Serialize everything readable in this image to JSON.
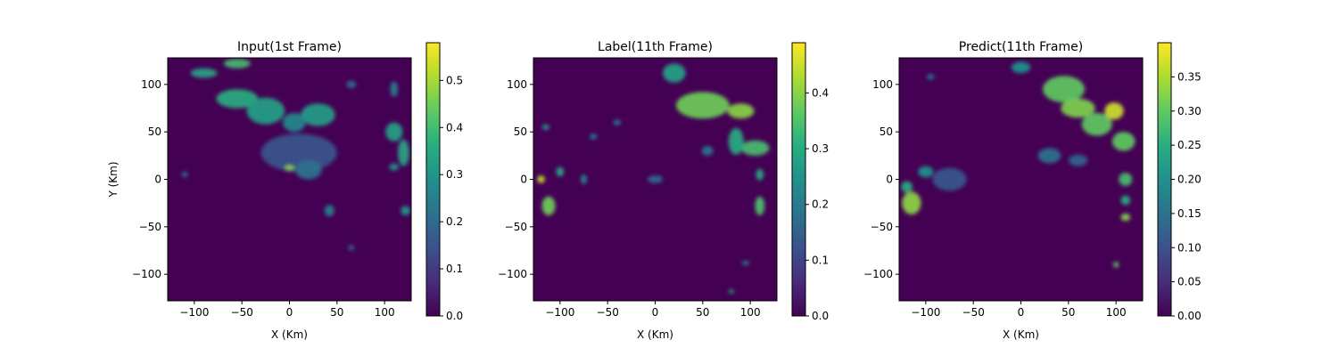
{
  "chart_data": [
    {
      "type": "heatmap",
      "title": "Input(1st Frame)",
      "xlabel": "X (Km)",
      "ylabel": "Y (Km)",
      "xlim": [
        -128,
        128
      ],
      "ylim": [
        -128,
        128
      ],
      "xticks": [
        -100,
        -50,
        0,
        50,
        100
      ],
      "yticks": [
        100,
        50,
        0,
        -50,
        -100
      ],
      "xtick_labels": [
        "−100",
        "−50",
        "0",
        "50",
        "100"
      ],
      "ytick_labels": [
        "100",
        "50",
        "0",
        "−50",
        "−100"
      ],
      "colormap": "viridis",
      "colorbar": {
        "min": 0.0,
        "max": 0.58,
        "ticks": [
          0.0,
          0.1,
          0.2,
          0.3,
          0.4,
          0.5
        ],
        "tick_labels": [
          "0.0",
          "0.1",
          "0.2",
          "0.3",
          "0.4",
          "0.5"
        ]
      },
      "blobs": [
        {
          "x": -55,
          "y": 85,
          "rx": 22,
          "ry": 10,
          "v": 0.36
        },
        {
          "x": -25,
          "y": 72,
          "rx": 20,
          "ry": 14,
          "v": 0.33
        },
        {
          "x": 30,
          "y": 68,
          "rx": 18,
          "ry": 12,
          "v": 0.32
        },
        {
          "x": 5,
          "y": 60,
          "rx": 12,
          "ry": 10,
          "v": 0.27
        },
        {
          "x": -90,
          "y": 112,
          "rx": 14,
          "ry": 5,
          "v": 0.34
        },
        {
          "x": -55,
          "y": 122,
          "rx": 14,
          "ry": 5,
          "v": 0.4
        },
        {
          "x": 10,
          "y": 28,
          "rx": 40,
          "ry": 20,
          "v": 0.15
        },
        {
          "x": 20,
          "y": 10,
          "rx": 14,
          "ry": 10,
          "v": 0.22
        },
        {
          "x": 0,
          "y": 12,
          "rx": 5,
          "ry": 3,
          "v": 0.47
        },
        {
          "x": 110,
          "y": 50,
          "rx": 9,
          "ry": 10,
          "v": 0.33
        },
        {
          "x": 120,
          "y": 28,
          "rx": 6,
          "ry": 14,
          "v": 0.34
        },
        {
          "x": 122,
          "y": -33,
          "rx": 5,
          "ry": 5,
          "v": 0.3
        },
        {
          "x": 110,
          "y": 13,
          "rx": 5,
          "ry": 4,
          "v": 0.28
        },
        {
          "x": 42,
          "y": -33,
          "rx": 5,
          "ry": 6,
          "v": 0.25
        },
        {
          "x": 65,
          "y": 100,
          "rx": 5,
          "ry": 4,
          "v": 0.2
        },
        {
          "x": 110,
          "y": 95,
          "rx": 4,
          "ry": 8,
          "v": 0.25
        },
        {
          "x": -110,
          "y": 5,
          "rx": 3,
          "ry": 3,
          "v": 0.22
        },
        {
          "x": 65,
          "y": -72,
          "rx": 3,
          "ry": 3,
          "v": 0.2
        }
      ]
    },
    {
      "type": "heatmap",
      "title": "Label(11th Frame)",
      "xlabel": "X (Km)",
      "ylabel": "",
      "xlim": [
        -128,
        128
      ],
      "ylim": [
        -128,
        128
      ],
      "xticks": [
        -100,
        -50,
        0,
        50,
        100
      ],
      "yticks": [
        100,
        50,
        0,
        -50,
        -100
      ],
      "xtick_labels": [
        "−100",
        "−50",
        "0",
        "50",
        "100"
      ],
      "ytick_labels": [
        "100",
        "50",
        "0",
        "−50",
        "−100"
      ],
      "colormap": "viridis",
      "colorbar": {
        "min": 0.0,
        "max": 0.49,
        "ticks": [
          0.0,
          0.1,
          0.2,
          0.3,
          0.4
        ],
        "tick_labels": [
          "0.0",
          "0.1",
          "0.2",
          "0.3",
          "0.4"
        ]
      },
      "blobs": [
        {
          "x": 50,
          "y": 78,
          "rx": 28,
          "ry": 14,
          "v": 0.38
        },
        {
          "x": 90,
          "y": 72,
          "rx": 14,
          "ry": 8,
          "v": 0.4
        },
        {
          "x": 20,
          "y": 112,
          "rx": 12,
          "ry": 10,
          "v": 0.28
        },
        {
          "x": 105,
          "y": 33,
          "rx": 15,
          "ry": 8,
          "v": 0.34
        },
        {
          "x": 85,
          "y": 40,
          "rx": 8,
          "ry": 14,
          "v": 0.3
        },
        {
          "x": -112,
          "y": -28,
          "rx": 7,
          "ry": 10,
          "v": 0.38
        },
        {
          "x": -120,
          "y": 0,
          "rx": 4,
          "ry": 4,
          "v": 0.45
        },
        {
          "x": -100,
          "y": 8,
          "rx": 4,
          "ry": 5,
          "v": 0.3
        },
        {
          "x": 110,
          "y": -28,
          "rx": 5,
          "ry": 10,
          "v": 0.35
        },
        {
          "x": 110,
          "y": 5,
          "rx": 4,
          "ry": 6,
          "v": 0.3
        },
        {
          "x": 0,
          "y": 0,
          "rx": 8,
          "ry": 4,
          "v": 0.18
        },
        {
          "x": 55,
          "y": 30,
          "rx": 6,
          "ry": 5,
          "v": 0.2
        },
        {
          "x": -75,
          "y": 0,
          "rx": 3,
          "ry": 5,
          "v": 0.25
        },
        {
          "x": 95,
          "y": -88,
          "rx": 4,
          "ry": 2,
          "v": 0.25
        },
        {
          "x": 80,
          "y": -118,
          "rx": 3,
          "ry": 2,
          "v": 0.3
        },
        {
          "x": -115,
          "y": 55,
          "rx": 4,
          "ry": 3,
          "v": 0.25
        },
        {
          "x": -40,
          "y": 60,
          "rx": 4,
          "ry": 3,
          "v": 0.2
        },
        {
          "x": -65,
          "y": 45,
          "rx": 4,
          "ry": 3,
          "v": 0.2
        }
      ]
    },
    {
      "type": "heatmap",
      "title": "Predict(11th Frame)",
      "xlabel": "X (Km)",
      "ylabel": "",
      "xlim": [
        -128,
        128
      ],
      "ylim": [
        -128,
        128
      ],
      "xticks": [
        -100,
        -50,
        0,
        50,
        100
      ],
      "yticks": [
        100,
        50,
        0,
        -50,
        -100
      ],
      "xtick_labels": [
        "−100",
        "−50",
        "0",
        "50",
        "100"
      ],
      "ytick_labels": [
        "100",
        "50",
        "0",
        "−50",
        "−100"
      ],
      "colormap": "viridis",
      "colorbar": {
        "min": 0.0,
        "max": 0.4,
        "ticks": [
          0.0,
          0.05,
          0.1,
          0.15,
          0.2,
          0.25,
          0.3,
          0.35
        ],
        "tick_labels": [
          "0.00",
          "0.05",
          "0.10",
          "0.15",
          "0.20",
          "0.25",
          "0.30",
          "0.35"
        ]
      },
      "blobs": [
        {
          "x": 45,
          "y": 95,
          "rx": 22,
          "ry": 14,
          "v": 0.3
        },
        {
          "x": 60,
          "y": 75,
          "rx": 18,
          "ry": 10,
          "v": 0.32
        },
        {
          "x": 80,
          "y": 58,
          "rx": 16,
          "ry": 12,
          "v": 0.3
        },
        {
          "x": 98,
          "y": 72,
          "rx": 10,
          "ry": 9,
          "v": 0.37
        },
        {
          "x": 108,
          "y": 40,
          "rx": 12,
          "ry": 10,
          "v": 0.3
        },
        {
          "x": 0,
          "y": 118,
          "rx": 10,
          "ry": 6,
          "v": 0.2
        },
        {
          "x": -115,
          "y": -25,
          "rx": 10,
          "ry": 12,
          "v": 0.33
        },
        {
          "x": -120,
          "y": -8,
          "rx": 6,
          "ry": 6,
          "v": 0.25
        },
        {
          "x": 110,
          "y": -40,
          "rx": 5,
          "ry": 4,
          "v": 0.32
        },
        {
          "x": 110,
          "y": 0,
          "rx": 7,
          "ry": 7,
          "v": 0.28
        },
        {
          "x": 110,
          "y": -22,
          "rx": 5,
          "ry": 5,
          "v": 0.25
        },
        {
          "x": 30,
          "y": 25,
          "rx": 12,
          "ry": 8,
          "v": 0.15
        },
        {
          "x": 60,
          "y": 20,
          "rx": 10,
          "ry": 6,
          "v": 0.13
        },
        {
          "x": -75,
          "y": 0,
          "rx": 18,
          "ry": 12,
          "v": 0.11
        },
        {
          "x": -100,
          "y": 8,
          "rx": 8,
          "ry": 6,
          "v": 0.2
        },
        {
          "x": 100,
          "y": -90,
          "rx": 3,
          "ry": 3,
          "v": 0.3
        },
        {
          "x": -95,
          "y": 108,
          "rx": 4,
          "ry": 3,
          "v": 0.15
        }
      ]
    }
  ]
}
